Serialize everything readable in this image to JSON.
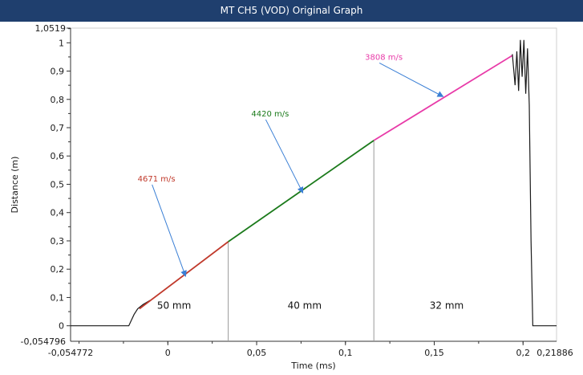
{
  "window": {
    "title": "MT CH5 (VOD) Original Graph"
  },
  "colors": {
    "titlebar": "#1f3f6e",
    "trace": "#1a1a1a",
    "arrow": "#3a7fd5"
  },
  "chart_data": {
    "type": "line",
    "title": "MT CH5 (VOD) Original Graph",
    "xlabel": "Time (ms)",
    "ylabel": "Distance (m)",
    "xlim": [
      -0.054772,
      0.21886
    ],
    "ylim": [
      -0.054796,
      1.0519
    ],
    "x_ticks": [
      -0.05,
      0,
      0.05,
      0.1,
      0.15,
      0.2
    ],
    "x_tick_labels": [
      "0",
      "0,05",
      "0,1",
      "0,15",
      "0,2"
    ],
    "x_tick_values": [
      0,
      0.05,
      0.1,
      0.15,
      0.2
    ],
    "x_bound_labels": [
      "-0,054772",
      "0,21886"
    ],
    "y_tick_values": [
      0,
      0.1,
      0.2,
      0.3,
      0.4,
      0.5,
      0.6,
      0.7,
      0.8,
      0.9,
      1
    ],
    "y_tick_labels": [
      "0",
      "0,1",
      "0,2",
      "0,3",
      "0,4",
      "0,5",
      "0,6",
      "0,7",
      "0,8",
      "0,9",
      "1"
    ],
    "y_bound_labels": [
      "-0,054796",
      "1,0519"
    ],
    "series": [
      {
        "name": "raw",
        "color": "#1a1a1a",
        "x": [
          -0.054772,
          -0.022,
          -0.0205,
          -0.019,
          -0.017,
          -0.014,
          -0.01
        ],
        "y": [
          0,
          0,
          0.02,
          0.04,
          0.06,
          0.075,
          0.09
        ]
      },
      {
        "name": "",
        "color": "#c0392b",
        "x": [
          -0.016,
          0.034
        ],
        "y": [
          0.06,
          0.297
        ]
      },
      {
        "name": "",
        "color": "#1b7a1b",
        "x": [
          0.034,
          0.116
        ],
        "y": [
          0.297,
          0.655
        ]
      },
      {
        "name": "",
        "color": "#e83aa8",
        "x": [
          0.116,
          0.194
        ],
        "y": [
          0.655,
          0.955
        ]
      },
      {
        "name": "raw-end",
        "color": "#1a1a1a",
        "x": [
          0.194,
          0.1955,
          0.1965,
          0.1975,
          0.1985,
          0.1995,
          0.2005,
          0.2015,
          0.2025,
          0.2035,
          0.2045,
          0.2055,
          0.21886
        ],
        "y": [
          0.96,
          0.85,
          0.97,
          0.83,
          1.01,
          0.88,
          1.01,
          0.82,
          0.98,
          0.78,
          0.3,
          0,
          0
        ]
      }
    ],
    "boundaries": [
      0.034,
      0.116
    ],
    "segment_labels": [
      {
        "text": "50 mm",
        "x": 0.0035,
        "y": 0.06
      },
      {
        "text": "40 mm",
        "x": 0.077,
        "y": 0.06
      },
      {
        "text": "32 mm",
        "x": 0.157,
        "y": 0.06
      }
    ],
    "speed_annotations": [
      {
        "text": "4671 m/s",
        "color": "#c0392b",
        "x": -0.017,
        "y": 0.51,
        "tx": 0.01,
        "ty": 0.175
      },
      {
        "text": "4420 m/s",
        "color": "#1b7a1b",
        "x": 0.047,
        "y": 0.74,
        "tx": 0.076,
        "ty": 0.47
      },
      {
        "text": "3808 m/s",
        "color": "#e83aa8",
        "x": 0.111,
        "y": 0.94,
        "tx": 0.155,
        "ty": 0.81
      }
    ]
  }
}
